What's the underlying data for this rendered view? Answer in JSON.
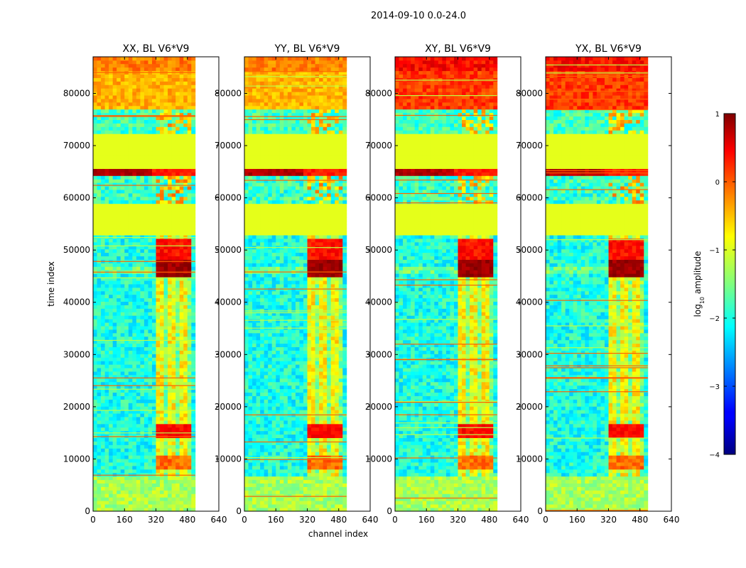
{
  "figure_title": "2014-09-10 0.0-24.0",
  "chart_data": {
    "type": "heatmap",
    "suptitle": "2014-09-10 0.0-24.0",
    "xlabel": "channel index",
    "ylabel": "time index",
    "xlim": [
      0,
      640
    ],
    "ylim": [
      0,
      87000
    ],
    "xticks": [
      "0",
      "160",
      "320",
      "480",
      "640"
    ],
    "yticks": [
      "0",
      "10000",
      "20000",
      "30000",
      "40000",
      "50000",
      "60000",
      "70000",
      "80000"
    ],
    "data_channel_extent": 520,
    "panels": [
      {
        "title": "XX, BL V6*V9"
      },
      {
        "title": "YY, BL V6*V9"
      },
      {
        "title": "XY, BL V6*V9"
      },
      {
        "title": "YX, BL V6*V9"
      }
    ],
    "colorbar": {
      "label": "log10 amplitude",
      "label_base": "log",
      "label_sub": "10",
      "label_rest": " amplitude",
      "range": [
        -4,
        1
      ],
      "ticks": [
        "−4",
        "−3",
        "−2",
        "−1",
        "0",
        "1"
      ]
    },
    "bands": [
      {
        "t0": 0,
        "t1": 7000,
        "level": -1.6,
        "note": "low-time mixed region"
      },
      {
        "t0": 7000,
        "t1": 53000,
        "level": -2.3,
        "note": "noisy background"
      },
      {
        "t0": 14000,
        "t1": 17000,
        "level": 0.3,
        "note": "bright band in channels 320-510"
      },
      {
        "t0": 45000,
        "t1": 48000,
        "level": 0.8,
        "note": "strongest band in channels 320-510"
      },
      {
        "t0": 53000,
        "t1": 59000,
        "level": -1.0,
        "note": "flagged / constant"
      },
      {
        "t0": 64000,
        "t1": 65500,
        "level": 0.6,
        "note": "bright horizontal stripe"
      },
      {
        "t0": 65500,
        "t1": 72500,
        "level": -1.0,
        "note": "flagged / constant"
      },
      {
        "t0": 77000,
        "t1": 87000,
        "level": -0.3,
        "note": "high-amplitude region"
      }
    ]
  }
}
